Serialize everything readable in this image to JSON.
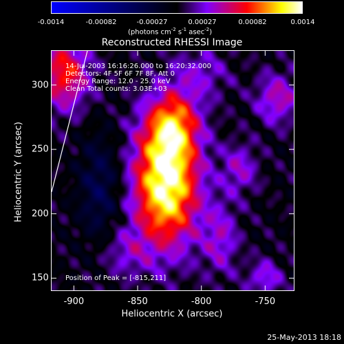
{
  "colorbar": {
    "ticks": [
      "-0.0014",
      "-0.00082",
      "-0.00027",
      "0.00027",
      "0.00082",
      "0.0014"
    ],
    "units_prefix": "(photons cm",
    "units_exp1": "-2",
    "units_mid": " s",
    "units_exp2": "-1",
    "units_mid2": " asec",
    "units_exp3": "-2",
    "units_suffix": ")",
    "colors": [
      "#0000ff",
      "#000000",
      "#8000ff",
      "#ff0000",
      "#ffff00",
      "#ffffff"
    ]
  },
  "chart_data": {
    "type": "heatmap",
    "title": "Reconstructed RHESSI Image",
    "xlabel": "Heliocentric X (arcsec)",
    "ylabel": "Heliocentric Y (arcsec)",
    "xlim": [
      -918,
      -727
    ],
    "ylim": [
      140,
      327
    ],
    "xticks": [
      -900,
      -850,
      -800,
      -750
    ],
    "yticks": [
      150,
      200,
      250,
      300
    ],
    "peak": [
      -815,
      211
    ],
    "blobs": [
      {
        "x": -828,
        "y": 225,
        "sx": 18,
        "sy": 35,
        "v": 0.0014
      },
      {
        "x": -822,
        "y": 270,
        "sx": 14,
        "sy": 18,
        "v": 0.0007
      },
      {
        "x": -908,
        "y": 310,
        "sx": 14,
        "sy": 20,
        "v": 0.0008
      },
      {
        "x": -785,
        "y": 180,
        "sx": 10,
        "sy": 20,
        "v": 0.0004
      },
      {
        "x": -740,
        "y": 290,
        "sx": 12,
        "sy": 14,
        "v": 0.0005
      },
      {
        "x": -750,
        "y": 150,
        "sx": 10,
        "sy": 10,
        "v": 0.0004
      },
      {
        "x": -880,
        "y": 220,
        "sx": 12,
        "sy": 30,
        "v": -0.0004
      },
      {
        "x": -860,
        "y": 170,
        "sx": 14,
        "sy": 14,
        "v": 0.0003
      },
      {
        "x": -770,
        "y": 235,
        "sx": 10,
        "sy": 14,
        "v": 0.0004
      },
      {
        "x": -800,
        "y": 310,
        "sx": 16,
        "sy": 14,
        "v": 0.0003
      }
    ]
  },
  "info": {
    "time": "14-Jul-2003 16:16:26.000 to 16:20:32.000",
    "detectors": "Detectors: 4F 5F 6F 7F 8F, Att 0",
    "energy": "Energy Range: 12.0 - 25.0 keV",
    "clean": "Clean     Total counts: 3.03E+03",
    "peak": "Position of Peak = [-815,211]"
  },
  "footer": "25-May-2013 18:18"
}
